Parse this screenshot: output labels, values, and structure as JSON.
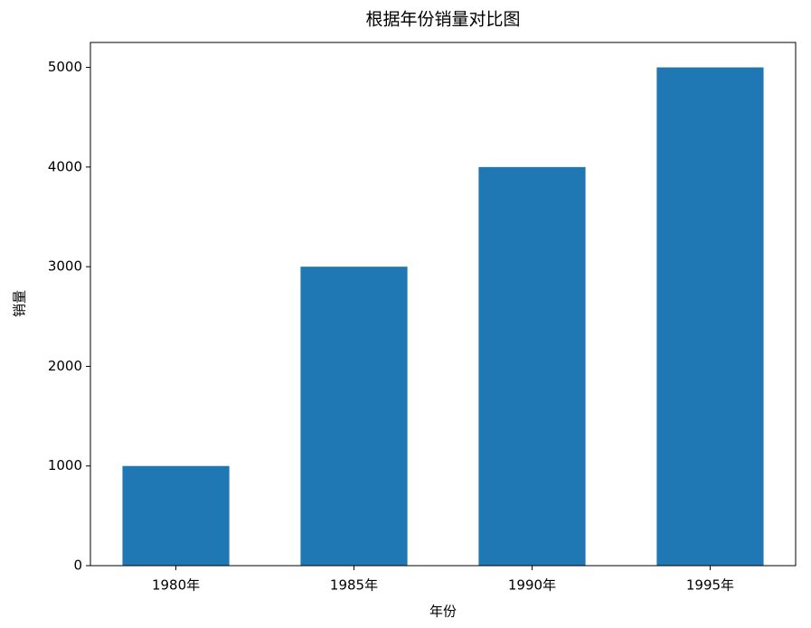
{
  "chart_data": {
    "type": "bar",
    "title": "根据年份销量对比图",
    "categories": [
      "1980年",
      "1985年",
      "1990年",
      "1995年"
    ],
    "values": [
      1000,
      3000,
      4000,
      5000
    ],
    "color": "#1f77b4",
    "xlabel": "年份",
    "ylabel": "销量",
    "ylim": [
      0,
      5250
    ],
    "yticks": [
      0,
      1000,
      2000,
      3000,
      4000,
      5000
    ],
    "grid": false
  }
}
